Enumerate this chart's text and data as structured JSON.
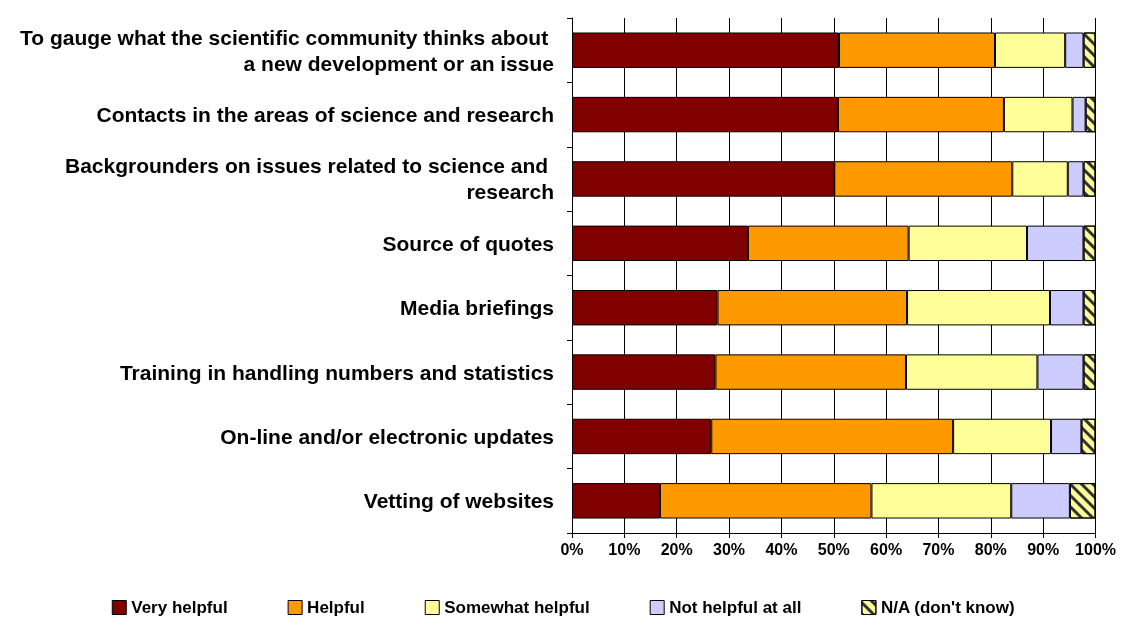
{
  "chart_data": {
    "type": "bar",
    "orientation": "horizontal",
    "stacked": true,
    "categories": [
      "To gauge what the scientific community thinks about a new development or an issue",
      "Contacts in the areas of science and research",
      "Backgrounders on issues related to science and research",
      "Source of quotes",
      "Media briefings",
      "Training in handling numbers and statistics",
      "On-line and/or electronic updates",
      "Vetting of websites"
    ],
    "series": [
      {
        "name": "Very helpful",
        "color": "#800000",
        "values": [
          51.0,
          50.8,
          50.1,
          33.6,
          27.8,
          27.4,
          26.6,
          16.8
        ]
      },
      {
        "name": "Helpful",
        "color": "#ff9900",
        "values": [
          29.8,
          31.7,
          34.0,
          30.7,
          36.2,
          36.4,
          46.2,
          40.4
        ]
      },
      {
        "name": "Somewhat helpful",
        "color": "#ffff99",
        "values": [
          13.4,
          13.1,
          10.6,
          22.6,
          27.3,
          25.1,
          18.7,
          26.7
        ]
      },
      {
        "name": "Not helpful at all",
        "color": "#ccccff",
        "values": [
          3.5,
          2.5,
          3.0,
          10.8,
          6.4,
          8.8,
          5.8,
          11.2
        ]
      },
      {
        "name": "N/A (don't know)",
        "color": "#ffff99",
        "values": [
          2.3,
          1.9,
          2.3,
          2.3,
          2.3,
          2.3,
          2.7,
          4.9
        ]
      }
    ],
    "xlim": [
      0,
      100
    ],
    "xticks": [
      {
        "value": 0,
        "label": "0%"
      },
      {
        "value": 10,
        "label": "10%"
      },
      {
        "value": 20,
        "label": "20%"
      },
      {
        "value": 30,
        "label": "30%"
      },
      {
        "value": 40,
        "label": "40%"
      },
      {
        "value": 50,
        "label": "50%"
      },
      {
        "value": 60,
        "label": "60%"
      },
      {
        "value": 70,
        "label": "70%"
      },
      {
        "value": 80,
        "label": "80%"
      },
      {
        "value": 90,
        "label": "90%"
      },
      {
        "value": 100,
        "label": "100%"
      }
    ],
    "grid": "x",
    "legend": "bottom"
  }
}
